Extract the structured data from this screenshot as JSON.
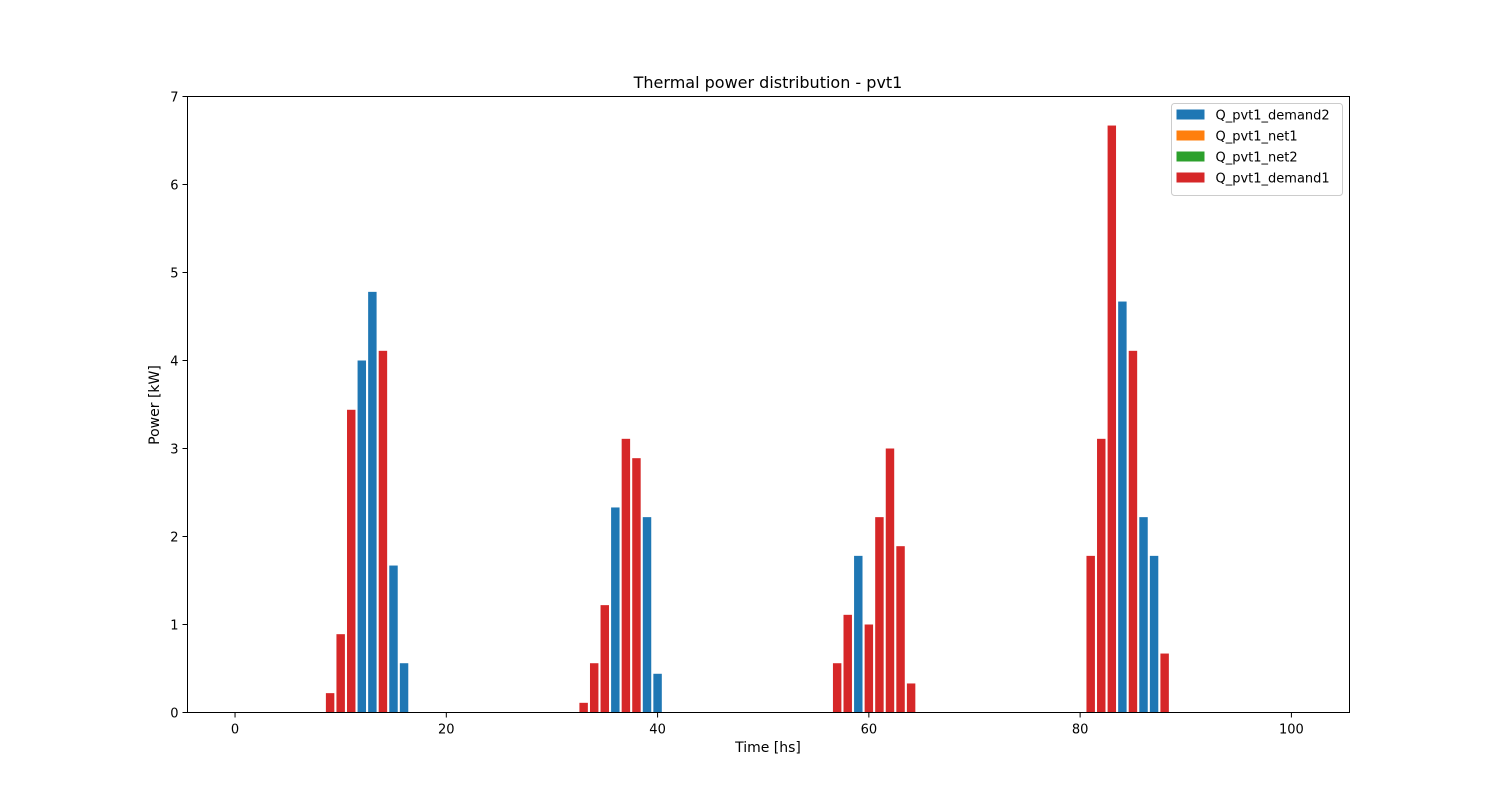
{
  "chart_data": {
    "type": "bar",
    "title": "Thermal power distribution - pvt1",
    "xlabel": "Time [hs]",
    "ylabel": "Power [kW]",
    "xlim": [
      -4.5,
      105.5
    ],
    "ylim": [
      0,
      7
    ],
    "xticks": [
      0,
      20,
      40,
      60,
      80,
      100
    ],
    "yticks": [
      0,
      1,
      2,
      3,
      4,
      5,
      6,
      7
    ],
    "grid": false,
    "legend_position": "top-right",
    "series": [
      {
        "name": "Q_pvt1_demand2",
        "color": "#1f77b4",
        "points": [
          {
            "x": 12,
            "y": 4.0
          },
          {
            "x": 13,
            "y": 4.78
          },
          {
            "x": 15,
            "y": 1.67
          },
          {
            "x": 16,
            "y": 0.56
          },
          {
            "x": 36,
            "y": 2.33
          },
          {
            "x": 39,
            "y": 2.22
          },
          {
            "x": 40,
            "y": 0.44
          },
          {
            "x": 59,
            "y": 1.78
          },
          {
            "x": 84,
            "y": 4.67
          },
          {
            "x": 86,
            "y": 2.22
          },
          {
            "x": 87,
            "y": 1.78
          }
        ]
      },
      {
        "name": "Q_pvt1_net1",
        "color": "#ff7f0e",
        "points": []
      },
      {
        "name": "Q_pvt1_net2",
        "color": "#2ca02c",
        "points": []
      },
      {
        "name": "Q_pvt1_demand1",
        "color": "#d62728",
        "points": [
          {
            "x": 9,
            "y": 0.22
          },
          {
            "x": 10,
            "y": 0.89
          },
          {
            "x": 11,
            "y": 3.44
          },
          {
            "x": 14,
            "y": 4.11
          },
          {
            "x": 33,
            "y": 0.11
          },
          {
            "x": 34,
            "y": 0.56
          },
          {
            "x": 35,
            "y": 1.22
          },
          {
            "x": 37,
            "y": 3.11
          },
          {
            "x": 38,
            "y": 2.89
          },
          {
            "x": 57,
            "y": 0.56
          },
          {
            "x": 58,
            "y": 1.11
          },
          {
            "x": 60,
            "y": 1.0
          },
          {
            "x": 61,
            "y": 2.22
          },
          {
            "x": 62,
            "y": 3.0
          },
          {
            "x": 63,
            "y": 1.89
          },
          {
            "x": 64,
            "y": 0.33
          },
          {
            "x": 81,
            "y": 1.78
          },
          {
            "x": 82,
            "y": 3.11
          },
          {
            "x": 83,
            "y": 6.67
          },
          {
            "x": 85,
            "y": 4.11
          },
          {
            "x": 88,
            "y": 0.67
          }
        ]
      }
    ]
  }
}
